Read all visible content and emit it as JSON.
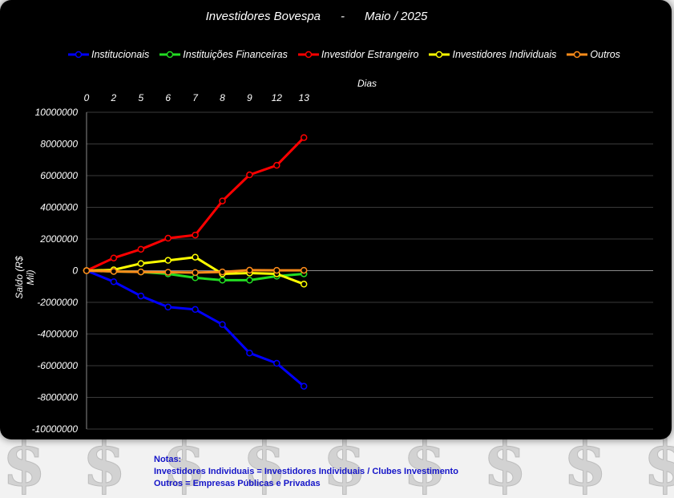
{
  "colors": {
    "page_background": "#f2f2f2",
    "chart_background": "#000000",
    "gridline": "#3a3a3a",
    "text": "#ffffff",
    "notes_text": "#1414c8"
  },
  "watermark_icon": "dollar-sign-icon",
  "notes": {
    "heading": "Notas:",
    "line1": "Investidores Individuais = Investidores Individuais / Clubes Investimento",
    "line2": "Outros = Empresas Públicas e Privadas"
  },
  "chart_data": {
    "type": "line",
    "title": "Investidores Bovespa      -      Maio / 2025",
    "xlabel": "Dias",
    "ylabel": "Saldo (R$ Mil)",
    "x_axis_position": "top",
    "categories": [
      "0",
      "2",
      "5",
      "6",
      "7",
      "8",
      "9",
      "12",
      "13"
    ],
    "ylim": [
      -10000000,
      10000000
    ],
    "y_ticks": [
      10000000,
      8000000,
      6000000,
      4000000,
      2000000,
      0,
      -2000000,
      -4000000,
      -6000000,
      -8000000,
      -10000000
    ],
    "y_tick_labels": [
      "10000000",
      "8000000",
      "6000000",
      "4000000",
      "2000000",
      "0",
      "-2000000",
      "-4000000",
      "-6000000",
      "-8000000",
      "-10000000"
    ],
    "grid": true,
    "legend_position": "top",
    "series": [
      {
        "name": "Institucionais",
        "color": "#0000ff",
        "values": [
          0,
          -700000,
          -1600000,
          -2300000,
          -2450000,
          -3400000,
          -5200000,
          -5850000,
          -7300000
        ]
      },
      {
        "name": "Instituições Financeiras",
        "color": "#22dd22",
        "values": [
          0,
          -50000,
          -80000,
          -200000,
          -450000,
          -600000,
          -600000,
          -350000,
          -200000
        ]
      },
      {
        "name": "Investidor Estrangeiro",
        "color": "#ff0000",
        "values": [
          0,
          800000,
          1350000,
          2050000,
          2250000,
          4400000,
          6050000,
          6650000,
          8400000
        ]
      },
      {
        "name": "Investidores Individuais",
        "color": "#ffff00",
        "values": [
          0,
          50000,
          450000,
          650000,
          850000,
          -200000,
          -150000,
          -200000,
          -850000
        ]
      },
      {
        "name": "Outros",
        "color": "#ff8c1a",
        "values": [
          0,
          -50000,
          -80000,
          -100000,
          -120000,
          -80000,
          30000,
          20000,
          20000
        ]
      }
    ]
  }
}
